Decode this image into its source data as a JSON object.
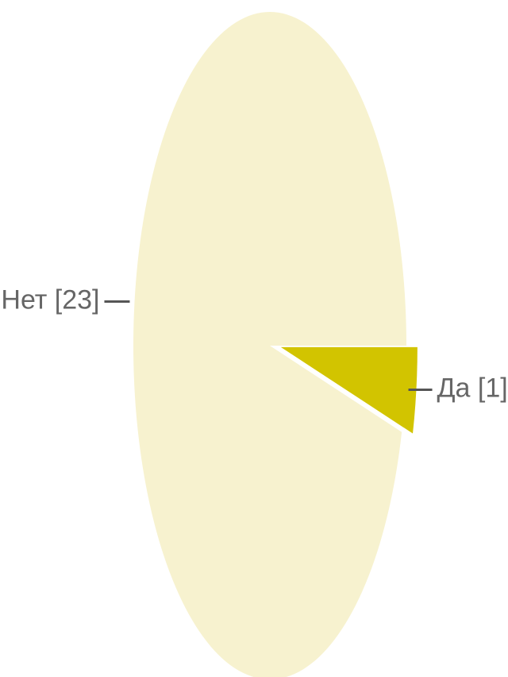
{
  "chart_data": {
    "type": "pie",
    "values": [
      23,
      1
    ],
    "value_labels": [
      "Нет [23]",
      "Да [1]"
    ],
    "colors": [
      "#f7f2cf",
      "#d2c400"
    ]
  }
}
